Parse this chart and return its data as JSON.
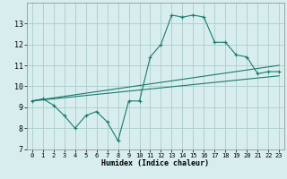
{
  "title": "",
  "xlabel": "Humidex (Indice chaleur)",
  "bg_color": "#d8eeee",
  "grid_color": "#aacccc",
  "line_color": "#1a7a6e",
  "xlim": [
    -0.5,
    23.5
  ],
  "ylim": [
    7,
    14
  ],
  "xticks": [
    0,
    1,
    2,
    3,
    4,
    5,
    6,
    7,
    8,
    9,
    10,
    11,
    12,
    13,
    14,
    15,
    16,
    17,
    18,
    19,
    20,
    21,
    22,
    23
  ],
  "yticks": [
    7,
    8,
    9,
    10,
    11,
    12,
    13
  ],
  "line1_x": [
    0,
    1,
    2,
    3,
    4,
    5,
    6,
    7,
    8,
    9,
    10,
    11,
    12,
    13,
    14,
    15,
    16,
    17,
    18,
    19,
    20,
    21,
    22,
    23
  ],
  "line1_y": [
    9.3,
    9.4,
    9.1,
    8.6,
    8.0,
    8.6,
    8.8,
    8.3,
    7.4,
    9.3,
    9.3,
    11.4,
    12.0,
    13.4,
    13.3,
    13.4,
    13.3,
    12.1,
    12.1,
    11.5,
    11.4,
    10.6,
    10.7,
    10.7
  ],
  "line2_x": [
    0,
    23
  ],
  "line2_y": [
    9.3,
    10.5
  ],
  "line3_x": [
    0,
    23
  ],
  "line3_y": [
    9.3,
    11.0
  ]
}
